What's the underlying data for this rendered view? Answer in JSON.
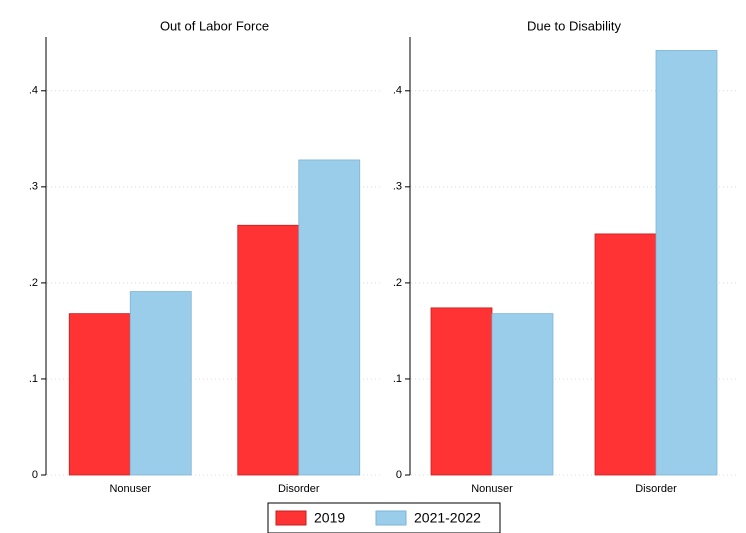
{
  "chart_data": [
    {
      "type": "bar",
      "title": "Out of Labor Force",
      "categories": [
        "Nonuser",
        "Disorder"
      ],
      "series": [
        {
          "name": "2019",
          "color": "#ff3333",
          "values": [
            0.168,
            0.26
          ]
        },
        {
          "name": "2021-2022",
          "color": "#99cdea",
          "values": [
            0.191,
            0.328
          ]
        }
      ],
      "ylim": [
        0,
        0.456
      ],
      "yticks": [
        0,
        {
          "value": 0.1,
          "label": ".1"
        },
        {
          "value": 0.2,
          "label": ".2"
        },
        {
          "value": 0.3,
          "label": ".3"
        },
        {
          "value": 0.4,
          "label": ".4"
        }
      ],
      "grid": true
    },
    {
      "type": "bar",
      "title": "Due to Disability",
      "categories": [
        "Nonuser",
        "Disorder"
      ],
      "series": [
        {
          "name": "2019",
          "color": "#ff3333",
          "values": [
            0.174,
            0.251
          ]
        },
        {
          "name": "2021-2022",
          "color": "#99cdea",
          "values": [
            0.168,
            0.442
          ]
        }
      ],
      "ylim": [
        0,
        0.456
      ],
      "yticks": [
        0,
        {
          "value": 0.1,
          "label": ".1"
        },
        {
          "value": 0.2,
          "label": ".2"
        },
        {
          "value": 0.3,
          "label": ".3"
        },
        {
          "value": 0.4,
          "label": ".4"
        }
      ],
      "grid": true
    }
  ]
}
